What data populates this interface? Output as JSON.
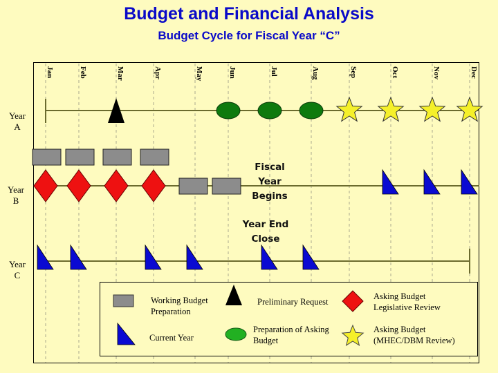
{
  "header": {
    "title": "Budget and Financial Analysis",
    "subtitle": "Budget Cycle for Fiscal Year “C”"
  },
  "months": [
    "Jan",
    "Feb",
    "Mar",
    "Apr",
    "May",
    "Jun",
    "Jul",
    "Aug",
    "Sep",
    "Oct",
    "Nov",
    "Dec"
  ],
  "rows": {
    "year_a": {
      "label_line1": "Year",
      "label_line2": "A"
    },
    "year_b": {
      "label_line1": "Year",
      "label_line2": "B"
    },
    "year_c": {
      "label_line1": "Year",
      "label_line2": "C"
    }
  },
  "annotations": {
    "fiscal_year_begins": [
      "Fiscal",
      "Year",
      "Begins"
    ],
    "year_end_close": [
      "Year End",
      "Close"
    ]
  },
  "markers": {
    "year_a": {
      "preliminary_request": [
        "Mar"
      ],
      "preparation_of_asking_budget": [
        "Jun",
        "Jul",
        "Aug"
      ],
      "asking_budget_mhec_dbm_review": [
        "Sep",
        "Oct",
        "Nov",
        "Dec"
      ]
    },
    "year_b": {
      "working_budget_preparation": [
        "Jan",
        "Feb",
        "Mar",
        "Apr",
        "May",
        "Jun"
      ],
      "asking_budget_legislative_review": [
        "Jan",
        "Feb",
        "Mar",
        "Apr"
      ],
      "current_year": [
        "Oct",
        "Nov",
        "Dec"
      ]
    },
    "year_c": {
      "current_year": [
        "Jan",
        "Feb",
        "Apr",
        "May",
        "Jul",
        "Aug"
      ]
    }
  },
  "legend": {
    "working_budget_preparation": {
      "line1": "Working Budget",
      "line2": "Preparation",
      "icon": "gray-rectangle",
      "color": "#8c8c8c"
    },
    "preliminary_request": {
      "line1": "Preliminary Request",
      "icon": "black-triangle",
      "color": "#000000"
    },
    "asking_budget_legislative_review": {
      "line1": "Asking Budget",
      "line2": "Legislative Review",
      "icon": "red-diamond",
      "color": "#ee1111"
    },
    "current_year": {
      "line1": "Current Year",
      "icon": "blue-right-triangle",
      "color": "#0a0ad2"
    },
    "preparation_of_asking_budget": {
      "line1": "Preparation of Asking",
      "line2": "Budget",
      "icon": "green-ellipse",
      "color": "#1a8a1a"
    },
    "asking_budget_mhec_dbm_review": {
      "line1": "Asking Budget",
      "line2": "(MHEC/DBM Review)",
      "icon": "yellow-star",
      "color": "#f5f02a"
    }
  },
  "colors": {
    "background": "#fefbbf",
    "title": "#0a0ac8",
    "timeline": "#6b6b2e",
    "gridline": "#bdbd9a"
  }
}
